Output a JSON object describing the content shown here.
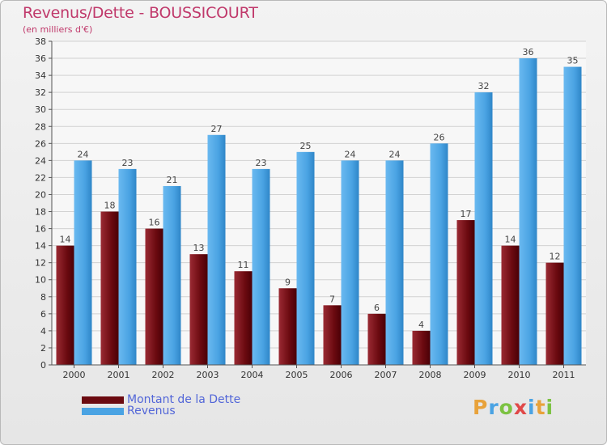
{
  "title": "Revenus/Dette - BOUSSICOURT",
  "subtitle": "(en milliers d'€)",
  "colors": {
    "dette": "#7a1c24",
    "revenus": "#4aa3e3",
    "title": "#c0396b",
    "legend_text": "#5266d8"
  },
  "legend": [
    {
      "label": "Montant de la Dette",
      "color": "#6b0a10"
    },
    {
      "label": "Revenus",
      "color": "#4aa3e3"
    }
  ],
  "logo": {
    "letters": [
      "P",
      "r",
      "o",
      "x",
      "i",
      "t",
      "i"
    ],
    "colors": [
      "#e8a23a",
      "#4aa3e3",
      "#7cc242",
      "#e04848",
      "#4aa3e3",
      "#e8a23a",
      "#7cc242"
    ]
  },
  "chart_data": {
    "type": "bar",
    "title": "Revenus/Dette - BOUSSICOURT",
    "ylabel": "(en milliers d'€)",
    "categories": [
      "2000",
      "2001",
      "2002",
      "2003",
      "2004",
      "2005",
      "2006",
      "2007",
      "2008",
      "2009",
      "2010",
      "2011"
    ],
    "series": [
      {
        "name": "Montant de la Dette",
        "values": [
          14,
          18,
          16,
          13,
          11,
          9,
          7,
          6,
          4,
          17,
          14,
          12
        ]
      },
      {
        "name": "Revenus",
        "values": [
          24,
          23,
          21,
          27,
          23,
          25,
          24,
          24,
          26,
          32,
          36,
          35
        ]
      }
    ],
    "ylim": [
      0,
      38
    ],
    "yticks": [
      0,
      2,
      4,
      6,
      8,
      10,
      12,
      14,
      16,
      18,
      20,
      22,
      24,
      26,
      28,
      30,
      32,
      34,
      36,
      38
    ],
    "grid": true
  }
}
